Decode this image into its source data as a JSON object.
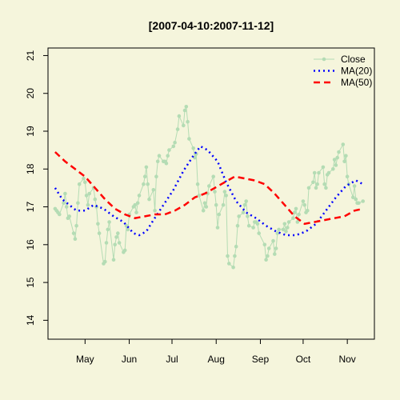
{
  "chart_data": {
    "type": "line",
    "title": "[2007-04-10:2007-11-12]",
    "xlabel": "",
    "ylabel": "",
    "xlim": [
      "2007-04-05",
      "2007-11-20"
    ],
    "ylim": [
      13.5,
      21.2
    ],
    "yticks": [
      14,
      15,
      16,
      17,
      18,
      19,
      20,
      21
    ],
    "xticks": [
      {
        "date": "2007-05-01",
        "label": "May"
      },
      {
        "date": "2007-06-01",
        "label": "Jun"
      },
      {
        "date": "2007-07-01",
        "label": "Jul"
      },
      {
        "date": "2007-08-01",
        "label": "Aug"
      },
      {
        "date": "2007-09-01",
        "label": "Sep"
      },
      {
        "date": "2007-10-01",
        "label": "Oct"
      },
      {
        "date": "2007-11-01",
        "label": "Nov"
      }
    ],
    "grid": false,
    "legend_position": "top-right",
    "series": [
      {
        "name": "Close",
        "color": "#B4DCB4",
        "style": "solid",
        "marker": "circle",
        "points": [
          [
            "2007-04-10",
            16.95
          ],
          [
            "2007-04-11",
            16.9
          ],
          [
            "2007-04-12",
            16.85
          ],
          [
            "2007-04-13",
            16.8
          ],
          [
            "2007-04-16",
            17.1
          ],
          [
            "2007-04-17",
            17.35
          ],
          [
            "2007-04-18",
            17.0
          ],
          [
            "2007-04-19",
            16.7
          ],
          [
            "2007-04-20",
            16.75
          ],
          [
            "2007-04-23",
            16.3
          ],
          [
            "2007-04-24",
            16.15
          ],
          [
            "2007-04-25",
            16.5
          ],
          [
            "2007-04-26",
            17.1
          ],
          [
            "2007-04-27",
            17.6
          ],
          [
            "2007-04-30",
            17.75
          ],
          [
            "2007-05-01",
            17.65
          ],
          [
            "2007-05-02",
            17.3
          ],
          [
            "2007-05-03",
            17.05
          ],
          [
            "2007-05-04",
            17.35
          ],
          [
            "2007-05-07",
            17.5
          ],
          [
            "2007-05-08",
            17.2
          ],
          [
            "2007-05-09",
            17.0
          ],
          [
            "2007-05-10",
            16.55
          ],
          [
            "2007-05-11",
            16.3
          ],
          [
            "2007-05-14",
            15.5
          ],
          [
            "2007-05-15",
            15.55
          ],
          [
            "2007-05-16",
            16.05
          ],
          [
            "2007-05-17",
            16.4
          ],
          [
            "2007-05-18",
            16.6
          ],
          [
            "2007-05-21",
            15.6
          ],
          [
            "2007-05-22",
            16.0
          ],
          [
            "2007-05-23",
            16.2
          ],
          [
            "2007-05-24",
            16.3
          ],
          [
            "2007-05-25",
            16.05
          ],
          [
            "2007-05-28",
            15.8
          ],
          [
            "2007-05-29",
            15.85
          ],
          [
            "2007-05-30",
            16.5
          ],
          [
            "2007-05-31",
            16.4
          ],
          [
            "2007-06-01",
            16.8
          ],
          [
            "2007-06-04",
            17.0
          ],
          [
            "2007-06-05",
            17.05
          ],
          [
            "2007-06-06",
            16.85
          ],
          [
            "2007-06-07",
            17.1
          ],
          [
            "2007-06-08",
            17.3
          ],
          [
            "2007-06-11",
            17.6
          ],
          [
            "2007-06-12",
            17.8
          ],
          [
            "2007-06-13",
            18.05
          ],
          [
            "2007-06-14",
            17.6
          ],
          [
            "2007-06-15",
            17.2
          ],
          [
            "2007-06-18",
            17.45
          ],
          [
            "2007-06-19",
            16.9
          ],
          [
            "2007-06-20",
            17.8
          ],
          [
            "2007-06-21",
            18.2
          ],
          [
            "2007-06-22",
            18.35
          ],
          [
            "2007-06-25",
            18.2
          ],
          [
            "2007-06-26",
            18.2
          ],
          [
            "2007-06-27",
            18.15
          ],
          [
            "2007-06-28",
            18.35
          ],
          [
            "2007-06-29",
            18.5
          ],
          [
            "2007-07-02",
            18.6
          ],
          [
            "2007-07-03",
            18.7
          ],
          [
            "2007-07-05",
            19.05
          ],
          [
            "2007-07-06",
            19.4
          ],
          [
            "2007-07-09",
            19.15
          ],
          [
            "2007-07-10",
            19.55
          ],
          [
            "2007-07-11",
            19.65
          ],
          [
            "2007-07-12",
            19.25
          ],
          [
            "2007-07-13",
            18.8
          ],
          [
            "2007-07-16",
            18.55
          ],
          [
            "2007-07-17",
            18.3
          ],
          [
            "2007-07-18",
            18.4
          ],
          [
            "2007-07-19",
            17.6
          ],
          [
            "2007-07-20",
            17.3
          ],
          [
            "2007-07-23",
            16.9
          ],
          [
            "2007-07-24",
            17.1
          ],
          [
            "2007-07-25",
            17.0
          ],
          [
            "2007-07-26",
            17.35
          ],
          [
            "2007-07-27",
            17.55
          ],
          [
            "2007-07-30",
            17.8
          ],
          [
            "2007-07-31",
            17.4
          ],
          [
            "2007-08-01",
            17.05
          ],
          [
            "2007-08-02",
            16.45
          ],
          [
            "2007-08-03",
            16.8
          ],
          [
            "2007-08-06",
            17.05
          ],
          [
            "2007-08-07",
            17.4
          ],
          [
            "2007-08-08",
            17.3
          ],
          [
            "2007-08-09",
            15.7
          ],
          [
            "2007-08-10",
            15.5
          ],
          [
            "2007-08-13",
            15.4
          ],
          [
            "2007-08-14",
            15.7
          ],
          [
            "2007-08-15",
            15.95
          ],
          [
            "2007-08-16",
            16.5
          ],
          [
            "2007-08-17",
            16.75
          ],
          [
            "2007-08-20",
            16.85
          ],
          [
            "2007-08-21",
            17.05
          ],
          [
            "2007-08-22",
            17.15
          ],
          [
            "2007-08-23",
            16.75
          ],
          [
            "2007-08-24",
            16.5
          ],
          [
            "2007-08-27",
            16.45
          ],
          [
            "2007-08-28",
            16.6
          ],
          [
            "2007-08-29",
            16.6
          ],
          [
            "2007-08-30",
            16.55
          ],
          [
            "2007-08-31",
            16.3
          ],
          [
            "2007-09-04",
            16.0
          ],
          [
            "2007-09-05",
            15.6
          ],
          [
            "2007-09-06",
            15.7
          ],
          [
            "2007-09-07",
            15.9
          ],
          [
            "2007-09-10",
            16.1
          ],
          [
            "2007-09-11",
            15.75
          ],
          [
            "2007-09-12",
            15.9
          ],
          [
            "2007-09-13",
            16.3
          ],
          [
            "2007-09-14",
            16.4
          ],
          [
            "2007-09-17",
            16.4
          ],
          [
            "2007-09-18",
            16.55
          ],
          [
            "2007-09-19",
            16.35
          ],
          [
            "2007-09-20",
            16.45
          ],
          [
            "2007-09-21",
            16.6
          ],
          [
            "2007-09-24",
            16.7
          ],
          [
            "2007-09-25",
            16.85
          ],
          [
            "2007-09-26",
            16.95
          ],
          [
            "2007-09-27",
            16.6
          ],
          [
            "2007-09-28",
            16.8
          ],
          [
            "2007-10-01",
            17.15
          ],
          [
            "2007-10-02",
            17.05
          ],
          [
            "2007-10-03",
            16.85
          ],
          [
            "2007-10-04",
            16.9
          ],
          [
            "2007-10-05",
            17.5
          ],
          [
            "2007-10-08",
            17.65
          ],
          [
            "2007-10-09",
            17.9
          ],
          [
            "2007-10-10",
            17.5
          ],
          [
            "2007-10-11",
            17.6
          ],
          [
            "2007-10-12",
            17.9
          ],
          [
            "2007-10-15",
            18.05
          ],
          [
            "2007-10-16",
            17.6
          ],
          [
            "2007-10-17",
            17.5
          ],
          [
            "2007-10-18",
            17.85
          ],
          [
            "2007-10-19",
            17.9
          ],
          [
            "2007-10-22",
            18.0
          ],
          [
            "2007-10-23",
            18.25
          ],
          [
            "2007-10-24",
            18.1
          ],
          [
            "2007-10-25",
            18.3
          ],
          [
            "2007-10-26",
            18.45
          ],
          [
            "2007-10-29",
            18.65
          ],
          [
            "2007-10-30",
            18.2
          ],
          [
            "2007-10-31",
            18.35
          ],
          [
            "2007-11-01",
            17.8
          ],
          [
            "2007-11-02",
            17.6
          ],
          [
            "2007-11-05",
            17.25
          ],
          [
            "2007-11-06",
            17.55
          ],
          [
            "2007-11-07",
            17.2
          ],
          [
            "2007-11-08",
            17.1
          ],
          [
            "2007-11-09",
            17.1
          ],
          [
            "2007-11-12",
            17.15
          ]
        ]
      },
      {
        "name": "MA(20)",
        "color": "#0000FF",
        "style": "dotted",
        "points": [
          [
            "2007-04-10",
            17.5
          ],
          [
            "2007-04-15",
            17.2
          ],
          [
            "2007-04-20",
            17.05
          ],
          [
            "2007-04-25",
            16.9
          ],
          [
            "2007-05-01",
            16.9
          ],
          [
            "2007-05-07",
            17.05
          ],
          [
            "2007-05-14",
            16.95
          ],
          [
            "2007-05-21",
            16.75
          ],
          [
            "2007-05-28",
            16.6
          ],
          [
            "2007-06-04",
            16.3
          ],
          [
            "2007-06-08",
            16.25
          ],
          [
            "2007-06-13",
            16.35
          ],
          [
            "2007-06-18",
            16.65
          ],
          [
            "2007-06-25",
            17.05
          ],
          [
            "2007-07-02",
            17.45
          ],
          [
            "2007-07-09",
            17.95
          ],
          [
            "2007-07-16",
            18.35
          ],
          [
            "2007-07-21",
            18.6
          ],
          [
            "2007-07-26",
            18.5
          ],
          [
            "2007-08-02",
            18.2
          ],
          [
            "2007-08-08",
            17.65
          ],
          [
            "2007-08-15",
            17.15
          ],
          [
            "2007-08-22",
            16.85
          ],
          [
            "2007-08-29",
            16.7
          ],
          [
            "2007-09-05",
            16.5
          ],
          [
            "2007-09-12",
            16.35
          ],
          [
            "2007-09-19",
            16.25
          ],
          [
            "2007-09-26",
            16.25
          ],
          [
            "2007-10-03",
            16.35
          ],
          [
            "2007-10-10",
            16.55
          ],
          [
            "2007-10-17",
            16.9
          ],
          [
            "2007-10-24",
            17.25
          ],
          [
            "2007-10-31",
            17.55
          ],
          [
            "2007-11-07",
            17.7
          ],
          [
            "2007-11-12",
            17.6
          ]
        ]
      },
      {
        "name": "MA(50)",
        "color": "#FF0000",
        "style": "dashed",
        "points": [
          [
            "2007-04-10",
            18.45
          ],
          [
            "2007-04-17",
            18.2
          ],
          [
            "2007-04-24",
            18.0
          ],
          [
            "2007-05-01",
            17.8
          ],
          [
            "2007-05-08",
            17.5
          ],
          [
            "2007-05-15",
            17.2
          ],
          [
            "2007-05-22",
            16.95
          ],
          [
            "2007-05-29",
            16.8
          ],
          [
            "2007-06-05",
            16.7
          ],
          [
            "2007-06-12",
            16.75
          ],
          [
            "2007-06-19",
            16.8
          ],
          [
            "2007-06-26",
            16.8
          ],
          [
            "2007-07-03",
            16.9
          ],
          [
            "2007-07-10",
            17.05
          ],
          [
            "2007-07-17",
            17.25
          ],
          [
            "2007-07-24",
            17.35
          ],
          [
            "2007-07-31",
            17.5
          ],
          [
            "2007-08-07",
            17.65
          ],
          [
            "2007-08-14",
            17.8
          ],
          [
            "2007-08-21",
            17.75
          ],
          [
            "2007-08-28",
            17.7
          ],
          [
            "2007-09-04",
            17.6
          ],
          [
            "2007-09-11",
            17.35
          ],
          [
            "2007-09-18",
            17.05
          ],
          [
            "2007-09-25",
            16.75
          ],
          [
            "2007-10-02",
            16.55
          ],
          [
            "2007-10-09",
            16.6
          ],
          [
            "2007-10-16",
            16.65
          ],
          [
            "2007-10-23",
            16.7
          ],
          [
            "2007-10-30",
            16.75
          ],
          [
            "2007-11-06",
            16.9
          ],
          [
            "2007-11-12",
            16.95
          ]
        ]
      }
    ]
  }
}
